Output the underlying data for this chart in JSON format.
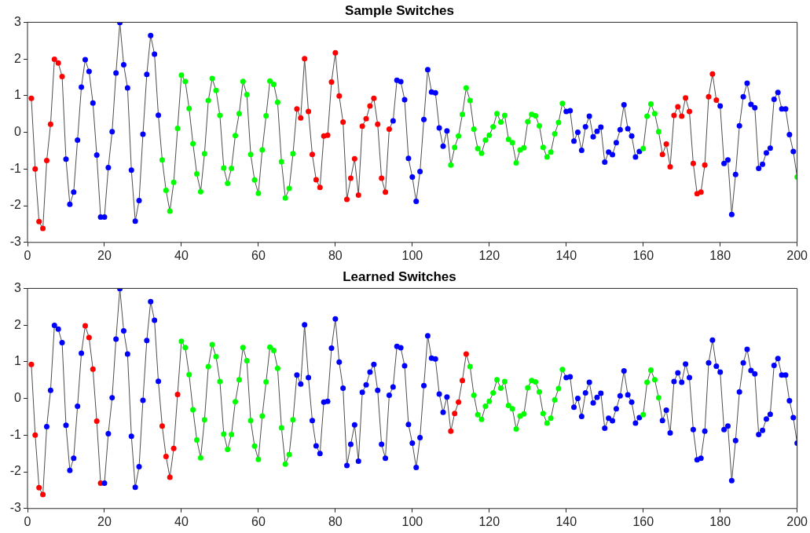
{
  "chart_data": [
    {
      "type": "line",
      "title": "Sample Switches",
      "marker": "circle",
      "line_style": "solid",
      "grid": false,
      "legend": false,
      "xlim": [
        0,
        200
      ],
      "xticks": [
        0,
        20,
        40,
        60,
        80,
        100,
        120,
        140,
        160,
        180,
        200
      ],
      "ylim": [
        -3,
        3
      ],
      "yticks": [
        -3,
        -2,
        -1,
        0,
        1,
        2,
        3
      ],
      "x": [
        1,
        2,
        3,
        4,
        5,
        6,
        7,
        8,
        9,
        10,
        11,
        12,
        13,
        14,
        15,
        16,
        17,
        18,
        19,
        20,
        21,
        22,
        23,
        24,
        25,
        26,
        27,
        28,
        29,
        30,
        31,
        32,
        33,
        34,
        35,
        36,
        37,
        38,
        39,
        40,
        41,
        42,
        43,
        44,
        45,
        46,
        47,
        48,
        49,
        50,
        51,
        52,
        53,
        54,
        55,
        56,
        57,
        58,
        59,
        60,
        61,
        62,
        63,
        64,
        65,
        66,
        67,
        68,
        69,
        70,
        71,
        72,
        73,
        74,
        75,
        76,
        77,
        78,
        79,
        80,
        81,
        82,
        83,
        84,
        85,
        86,
        87,
        88,
        89,
        90,
        91,
        92,
        93,
        94,
        95,
        96,
        97,
        98,
        99,
        100,
        101,
        102,
        103,
        104,
        105,
        106,
        107,
        108,
        109,
        110,
        111,
        112,
        113,
        114,
        115,
        116,
        117,
        118,
        119,
        120,
        121,
        122,
        123,
        124,
        125,
        126,
        127,
        128,
        129,
        130,
        131,
        132,
        133,
        134,
        135,
        136,
        137,
        138,
        139,
        140,
        141,
        142,
        143,
        144,
        145,
        146,
        147,
        148,
        149,
        150,
        151,
        152,
        153,
        154,
        155,
        156,
        157,
        158,
        159,
        160,
        161,
        162,
        163,
        164,
        165,
        166,
        167,
        168,
        169,
        170,
        171,
        172,
        173,
        174,
        175,
        176,
        177,
        178,
        179,
        180,
        181,
        182,
        183,
        184,
        185,
        186,
        187,
        188,
        189,
        190,
        191,
        192,
        193,
        194,
        195,
        196,
        197,
        198,
        199,
        200
      ],
      "series": [
        {
          "color": "#4d4d4d",
          "values": [
            0.93,
            -1.0,
            -2.43,
            -2.62,
            -0.77,
            0.22,
            1.99,
            1.89,
            1.52,
            -0.73,
            -1.96,
            -1.63,
            -0.21,
            1.23,
            1.98,
            1.66,
            0.8,
            -0.62,
            -2.31,
            -2.31,
            -0.96,
            0.02,
            1.62,
            2.99,
            1.84,
            1.21,
            -1.03,
            -2.42,
            -1.86,
            -0.05,
            1.58,
            2.64,
            2.13,
            0.47,
            -0.75,
            -1.58,
            -2.15,
            -1.36,
            0.11,
            1.56,
            1.39,
            0.65,
            -0.31,
            -1.13,
            -1.62,
            -0.58,
            0.87,
            1.47,
            1.14,
            0.46,
            -0.97,
            -1.39,
            -0.98,
            -0.09,
            0.51,
            1.39,
            1.03,
            -0.6,
            -1.3,
            -1.66,
            -0.48,
            0.45,
            1.4,
            1.31,
            0.82,
            -0.8,
            -1.79,
            -1.53,
            -0.58,
            0.64,
            0.39,
            2.01,
            0.57,
            -0.6,
            -1.29,
            -1.5,
            -0.1,
            -0.08,
            1.37,
            2.17,
            0.99,
            0.28,
            -1.83,
            -1.25,
            -0.72,
            -1.71,
            0.17,
            0.37,
            0.72,
            0.93,
            0.22,
            -1.25,
            -1.63,
            0.09,
            0.31,
            1.42,
            1.38,
            0.89,
            -0.71,
            -1.22,
            -1.88,
            -1.07,
            0.35,
            1.71,
            1.1,
            1.08,
            0.12,
            -0.38,
            0.04,
            -0.89,
            -0.41,
            -0.1,
            0.49,
            1.21,
            0.87,
            0.09,
            -0.44,
            -0.57,
            -0.21,
            -0.08,
            0.15,
            0.51,
            0.28,
            0.46,
            -0.19,
            -0.28,
            -0.83,
            -0.48,
            -0.42,
            0.29,
            0.49,
            0.45,
            0.18,
            -0.41,
            -0.67,
            -0.54,
            -0.04,
            0.27,
            0.79,
            0.57,
            0.59,
            -0.24,
            0.0,
            -0.49,
            0.15,
            0.44,
            -0.12,
            0.03,
            0.14,
            -0.81,
            -0.54,
            -0.61,
            -0.28,
            0.07,
            0.75,
            0.1,
            -0.1,
            -0.67,
            -0.52,
            -0.44,
            0.44,
            0.77,
            0.51,
            0.02,
            -0.6,
            -0.32,
            -0.94,
            0.46,
            0.7,
            0.44,
            0.94,
            0.57,
            -0.85,
            -1.67,
            -1.63,
            -0.89,
            0.97,
            1.59,
            0.88,
            0.72,
            -0.85,
            -0.75,
            -2.24,
            -1.15,
            0.18,
            0.97,
            1.34,
            0.76,
            0.67,
            -0.98,
            -0.87,
            -0.56,
            -0.43,
            0.9,
            1.09,
            0.64,
            0.64,
            -0.06,
            -0.52,
            -1.22
          ],
          "colors": [
            "#ff0000",
            "#ff0000",
            "#ff0000",
            "#ff0000",
            "#ff0000",
            "#ff0000",
            "#ff0000",
            "#ff0000",
            "#ff0000",
            "#0000ff",
            "#0000ff",
            "#0000ff",
            "#0000ff",
            "#0000ff",
            "#0000ff",
            "#0000ff",
            "#0000ff",
            "#0000ff",
            "#0000ff",
            "#0000ff",
            "#0000ff",
            "#0000ff",
            "#0000ff",
            "#0000ff",
            "#0000ff",
            "#0000ff",
            "#0000ff",
            "#0000ff",
            "#0000ff",
            "#0000ff",
            "#0000ff",
            "#0000ff",
            "#0000ff",
            "#0000ff",
            "#00ff00",
            "#00ff00",
            "#00ff00",
            "#00ff00",
            "#00ff00",
            "#00ff00",
            "#00ff00",
            "#00ff00",
            "#00ff00",
            "#00ff00",
            "#00ff00",
            "#00ff00",
            "#00ff00",
            "#00ff00",
            "#00ff00",
            "#00ff00",
            "#00ff00",
            "#00ff00",
            "#00ff00",
            "#00ff00",
            "#00ff00",
            "#00ff00",
            "#00ff00",
            "#00ff00",
            "#00ff00",
            "#00ff00",
            "#00ff00",
            "#00ff00",
            "#00ff00",
            "#00ff00",
            "#00ff00",
            "#00ff00",
            "#00ff00",
            "#00ff00",
            "#00ff00",
            "#ff0000",
            "#ff0000",
            "#ff0000",
            "#ff0000",
            "#ff0000",
            "#ff0000",
            "#ff0000",
            "#ff0000",
            "#ff0000",
            "#ff0000",
            "#ff0000",
            "#ff0000",
            "#ff0000",
            "#ff0000",
            "#ff0000",
            "#ff0000",
            "#ff0000",
            "#ff0000",
            "#ff0000",
            "#ff0000",
            "#ff0000",
            "#ff0000",
            "#ff0000",
            "#ff0000",
            "#ff0000",
            "#0000ff",
            "#0000ff",
            "#0000ff",
            "#0000ff",
            "#0000ff",
            "#0000ff",
            "#0000ff",
            "#0000ff",
            "#0000ff",
            "#0000ff",
            "#0000ff",
            "#0000ff",
            "#0000ff",
            "#0000ff",
            "#0000ff",
            "#00ff00",
            "#00ff00",
            "#00ff00",
            "#00ff00",
            "#00ff00",
            "#00ff00",
            "#00ff00",
            "#00ff00",
            "#00ff00",
            "#00ff00",
            "#00ff00",
            "#00ff00",
            "#00ff00",
            "#00ff00",
            "#00ff00",
            "#00ff00",
            "#00ff00",
            "#00ff00",
            "#00ff00",
            "#00ff00",
            "#00ff00",
            "#00ff00",
            "#00ff00",
            "#00ff00",
            "#00ff00",
            "#00ff00",
            "#00ff00",
            "#00ff00",
            "#00ff00",
            "#00ff00",
            "#0000ff",
            "#0000ff",
            "#0000ff",
            "#0000ff",
            "#0000ff",
            "#0000ff",
            "#0000ff",
            "#0000ff",
            "#0000ff",
            "#0000ff",
            "#0000ff",
            "#0000ff",
            "#0000ff",
            "#0000ff",
            "#0000ff",
            "#0000ff",
            "#0000ff",
            "#0000ff",
            "#0000ff",
            "#0000ff",
            "#00ff00",
            "#00ff00",
            "#00ff00",
            "#00ff00",
            "#00ff00",
            "#ff0000",
            "#ff0000",
            "#ff0000",
            "#ff0000",
            "#ff0000",
            "#ff0000",
            "#ff0000",
            "#ff0000",
            "#ff0000",
            "#ff0000",
            "#ff0000",
            "#ff0000",
            "#ff0000",
            "#ff0000",
            "#ff0000",
            "#0000ff",
            "#0000ff",
            "#0000ff",
            "#0000ff",
            "#0000ff",
            "#0000ff",
            "#0000ff",
            "#0000ff",
            "#0000ff",
            "#0000ff",
            "#0000ff",
            "#0000ff",
            "#0000ff",
            "#0000ff",
            "#0000ff",
            "#0000ff",
            "#0000ff",
            "#0000ff",
            "#0000ff",
            "#0000ff",
            "#00ff00"
          ]
        }
      ]
    },
    {
      "type": "line",
      "title": "Learned Switches",
      "marker": "circle",
      "line_style": "solid",
      "grid": false,
      "legend": false,
      "xlim": [
        0,
        200
      ],
      "xticks": [
        0,
        20,
        40,
        60,
        80,
        100,
        120,
        140,
        160,
        180,
        200
      ],
      "ylim": [
        -3,
        3
      ],
      "yticks": [
        -3,
        -2,
        -1,
        0,
        1,
        2,
        3
      ],
      "x": [
        1,
        2,
        3,
        4,
        5,
        6,
        7,
        8,
        9,
        10,
        11,
        12,
        13,
        14,
        15,
        16,
        17,
        18,
        19,
        20,
        21,
        22,
        23,
        24,
        25,
        26,
        27,
        28,
        29,
        30,
        31,
        32,
        33,
        34,
        35,
        36,
        37,
        38,
        39,
        40,
        41,
        42,
        43,
        44,
        45,
        46,
        47,
        48,
        49,
        50,
        51,
        52,
        53,
        54,
        55,
        56,
        57,
        58,
        59,
        60,
        61,
        62,
        63,
        64,
        65,
        66,
        67,
        68,
        69,
        70,
        71,
        72,
        73,
        74,
        75,
        76,
        77,
        78,
        79,
        80,
        81,
        82,
        83,
        84,
        85,
        86,
        87,
        88,
        89,
        90,
        91,
        92,
        93,
        94,
        95,
        96,
        97,
        98,
        99,
        100,
        101,
        102,
        103,
        104,
        105,
        106,
        107,
        108,
        109,
        110,
        111,
        112,
        113,
        114,
        115,
        116,
        117,
        118,
        119,
        120,
        121,
        122,
        123,
        124,
        125,
        126,
        127,
        128,
        129,
        130,
        131,
        132,
        133,
        134,
        135,
        136,
        137,
        138,
        139,
        140,
        141,
        142,
        143,
        144,
        145,
        146,
        147,
        148,
        149,
        150,
        151,
        152,
        153,
        154,
        155,
        156,
        157,
        158,
        159,
        160,
        161,
        162,
        163,
        164,
        165,
        166,
        167,
        168,
        169,
        170,
        171,
        172,
        173,
        174,
        175,
        176,
        177,
        178,
        179,
        180,
        181,
        182,
        183,
        184,
        185,
        186,
        187,
        188,
        189,
        190,
        191,
        192,
        193,
        194,
        195,
        196,
        197,
        198,
        199,
        200
      ],
      "series": [
        {
          "color": "#4d4d4d",
          "values": [
            0.93,
            -1.0,
            -2.43,
            -2.62,
            -0.77,
            0.22,
            1.99,
            1.89,
            1.52,
            -0.73,
            -1.96,
            -1.63,
            -0.21,
            1.23,
            1.98,
            1.66,
            0.8,
            -0.62,
            -2.31,
            -2.31,
            -0.96,
            0.02,
            1.62,
            2.99,
            1.84,
            1.21,
            -1.03,
            -2.42,
            -1.86,
            -0.05,
            1.58,
            2.64,
            2.13,
            0.47,
            -0.75,
            -1.58,
            -2.15,
            -1.36,
            0.11,
            1.56,
            1.39,
            0.65,
            -0.31,
            -1.13,
            -1.62,
            -0.58,
            0.87,
            1.47,
            1.14,
            0.46,
            -0.97,
            -1.39,
            -0.98,
            -0.09,
            0.51,
            1.39,
            1.03,
            -0.6,
            -1.3,
            -1.66,
            -0.48,
            0.45,
            1.4,
            1.31,
            0.82,
            -0.8,
            -1.79,
            -1.53,
            -0.58,
            0.64,
            0.39,
            2.01,
            0.57,
            -0.6,
            -1.29,
            -1.5,
            -0.1,
            -0.08,
            1.37,
            2.17,
            0.99,
            0.28,
            -1.83,
            -1.25,
            -0.72,
            -1.71,
            0.17,
            0.37,
            0.72,
            0.93,
            0.22,
            -1.25,
            -1.63,
            0.09,
            0.31,
            1.42,
            1.38,
            0.89,
            -0.71,
            -1.22,
            -1.88,
            -1.07,
            0.35,
            1.71,
            1.1,
            1.08,
            0.12,
            -0.38,
            0.04,
            -0.89,
            -0.41,
            -0.1,
            0.49,
            1.21,
            0.87,
            0.09,
            -0.44,
            -0.57,
            -0.21,
            -0.08,
            0.15,
            0.51,
            0.28,
            0.46,
            -0.19,
            -0.28,
            -0.83,
            -0.48,
            -0.42,
            0.29,
            0.49,
            0.45,
            0.18,
            -0.41,
            -0.67,
            -0.54,
            -0.04,
            0.27,
            0.79,
            0.57,
            0.59,
            -0.24,
            0.0,
            -0.49,
            0.15,
            0.44,
            -0.12,
            0.03,
            0.14,
            -0.81,
            -0.54,
            -0.61,
            -0.28,
            0.07,
            0.75,
            0.1,
            -0.1,
            -0.67,
            -0.52,
            -0.44,
            0.44,
            0.77,
            0.51,
            0.02,
            -0.6,
            -0.32,
            -0.94,
            0.46,
            0.7,
            0.44,
            0.94,
            0.57,
            -0.85,
            -1.67,
            -1.63,
            -0.89,
            0.97,
            1.59,
            0.88,
            0.72,
            -0.85,
            -0.75,
            -2.24,
            -1.15,
            0.18,
            0.97,
            1.34,
            0.76,
            0.67,
            -0.98,
            -0.87,
            -0.56,
            -0.43,
            0.9,
            1.09,
            0.64,
            0.64,
            -0.06,
            -0.52,
            -1.22
          ],
          "colors": [
            "#ff0000",
            "#ff0000",
            "#ff0000",
            "#ff0000",
            "#0000ff",
            "#0000ff",
            "#0000ff",
            "#0000ff",
            "#0000ff",
            "#0000ff",
            "#0000ff",
            "#0000ff",
            "#0000ff",
            "#0000ff",
            "#ff0000",
            "#ff0000",
            "#ff0000",
            "#ff0000",
            "#ff0000",
            "#0000ff",
            "#0000ff",
            "#0000ff",
            "#0000ff",
            "#0000ff",
            "#0000ff",
            "#0000ff",
            "#0000ff",
            "#0000ff",
            "#0000ff",
            "#0000ff",
            "#0000ff",
            "#0000ff",
            "#0000ff",
            "#0000ff",
            "#ff0000",
            "#ff0000",
            "#ff0000",
            "#ff0000",
            "#ff0000",
            "#00ff00",
            "#00ff00",
            "#00ff00",
            "#00ff00",
            "#00ff00",
            "#00ff00",
            "#00ff00",
            "#00ff00",
            "#00ff00",
            "#00ff00",
            "#00ff00",
            "#00ff00",
            "#00ff00",
            "#00ff00",
            "#00ff00",
            "#00ff00",
            "#00ff00",
            "#00ff00",
            "#00ff00",
            "#00ff00",
            "#00ff00",
            "#00ff00",
            "#00ff00",
            "#00ff00",
            "#00ff00",
            "#00ff00",
            "#00ff00",
            "#00ff00",
            "#00ff00",
            "#00ff00",
            "#0000ff",
            "#0000ff",
            "#0000ff",
            "#0000ff",
            "#0000ff",
            "#0000ff",
            "#0000ff",
            "#0000ff",
            "#0000ff",
            "#0000ff",
            "#0000ff",
            "#0000ff",
            "#0000ff",
            "#0000ff",
            "#0000ff",
            "#0000ff",
            "#0000ff",
            "#0000ff",
            "#0000ff",
            "#0000ff",
            "#0000ff",
            "#0000ff",
            "#0000ff",
            "#0000ff",
            "#0000ff",
            "#0000ff",
            "#0000ff",
            "#0000ff",
            "#0000ff",
            "#0000ff",
            "#0000ff",
            "#0000ff",
            "#0000ff",
            "#0000ff",
            "#0000ff",
            "#0000ff",
            "#0000ff",
            "#0000ff",
            "#0000ff",
            "#0000ff",
            "#ff0000",
            "#ff0000",
            "#ff0000",
            "#ff0000",
            "#ff0000",
            "#00ff00",
            "#00ff00",
            "#00ff00",
            "#00ff00",
            "#00ff00",
            "#00ff00",
            "#00ff00",
            "#00ff00",
            "#00ff00",
            "#00ff00",
            "#00ff00",
            "#00ff00",
            "#00ff00",
            "#00ff00",
            "#00ff00",
            "#00ff00",
            "#00ff00",
            "#00ff00",
            "#00ff00",
            "#00ff00",
            "#00ff00",
            "#00ff00",
            "#00ff00",
            "#00ff00",
            "#00ff00",
            "#0000ff",
            "#0000ff",
            "#0000ff",
            "#0000ff",
            "#0000ff",
            "#0000ff",
            "#0000ff",
            "#0000ff",
            "#0000ff",
            "#0000ff",
            "#0000ff",
            "#0000ff",
            "#0000ff",
            "#0000ff",
            "#0000ff",
            "#0000ff",
            "#0000ff",
            "#0000ff",
            "#0000ff",
            "#0000ff",
            "#00ff00",
            "#00ff00",
            "#00ff00",
            "#00ff00",
            "#00ff00",
            "#0000ff",
            "#0000ff",
            "#0000ff",
            "#0000ff",
            "#0000ff",
            "#0000ff",
            "#0000ff",
            "#0000ff",
            "#0000ff",
            "#0000ff",
            "#0000ff",
            "#0000ff",
            "#0000ff",
            "#0000ff",
            "#0000ff",
            "#0000ff",
            "#0000ff",
            "#0000ff",
            "#0000ff",
            "#0000ff",
            "#0000ff",
            "#0000ff",
            "#0000ff",
            "#0000ff",
            "#0000ff",
            "#0000ff",
            "#0000ff",
            "#0000ff",
            "#0000ff",
            "#0000ff",
            "#0000ff",
            "#0000ff",
            "#0000ff",
            "#0000ff",
            "#0000ff",
            "#0000ff"
          ]
        }
      ]
    }
  ]
}
